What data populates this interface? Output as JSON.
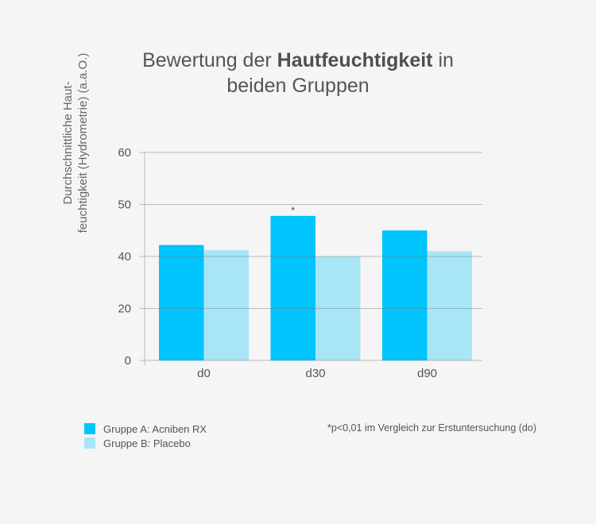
{
  "chart_data": {
    "type": "bar",
    "title_parts": [
      "Bewertung der ",
      "Hautfeuchtigkeit",
      " in",
      "beiden Gruppen"
    ],
    "ylabel_lines": [
      "Durchschnittliche Haut-",
      "feuchtigkeit (Hydrometrie) (a.a.O.)"
    ],
    "xlabel": "",
    "categories": [
      "d0",
      "d30",
      "d90"
    ],
    "yticks": [
      0,
      20,
      40,
      50,
      60
    ],
    "ytick_labels": [
      "0",
      "20",
      "40",
      "50",
      "60"
    ],
    "ylim": [
      0,
      60
    ],
    "grid": true,
    "series": [
      {
        "name": "Gruppe A: Acniben RX",
        "color": "#00c4fc",
        "values": [
          42.2,
          47.8,
          45.0
        ]
      },
      {
        "name": "Gruppe B: Placebo",
        "color": "#a8e6f7",
        "values": [
          41.2,
          40.0,
          41.0
        ]
      }
    ],
    "annotations": [
      {
        "text": "*",
        "category": "d30",
        "series": "Gruppe A: Acniben RX"
      }
    ],
    "footnote": "*p<0,01 im Vergleich zur Erstuntersuchung (do)",
    "legend_position": "bottom-left"
  }
}
